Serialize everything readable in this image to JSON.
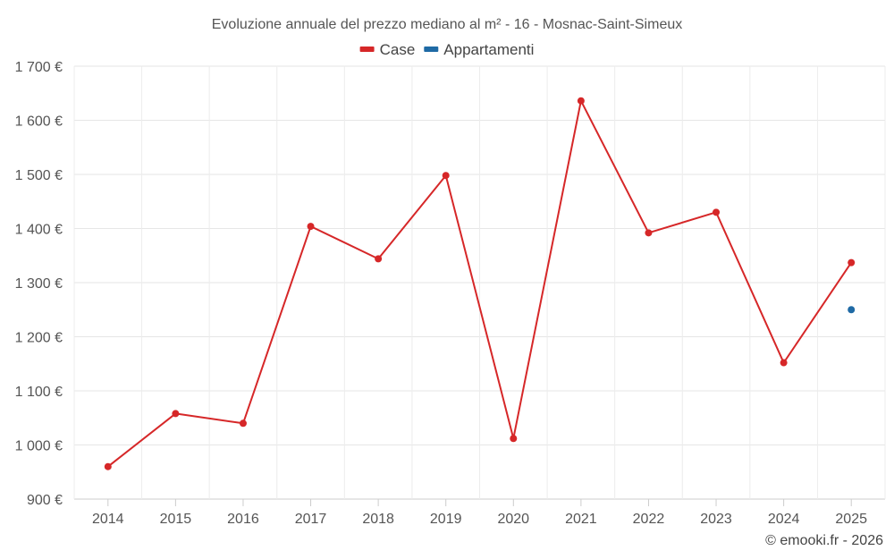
{
  "chart_data": {
    "type": "line",
    "title": "Evoluzione annuale del prezzo mediano al m² - 16 - Mosnac-Saint-Simeux",
    "categories": [
      "2014",
      "2015",
      "2016",
      "2017",
      "2018",
      "2019",
      "2020",
      "2021",
      "2022",
      "2023",
      "2024",
      "2025"
    ],
    "series": [
      {
        "name": "Case",
        "color": "#d62728",
        "values": [
          960,
          1058,
          1040,
          1404,
          1344,
          1498,
          1012,
          1636,
          1392,
          1430,
          1152,
          1337
        ]
      },
      {
        "name": "Appartamenti",
        "color": "#1f6aa5",
        "values": [
          null,
          null,
          null,
          null,
          null,
          null,
          null,
          null,
          null,
          null,
          null,
          1250
        ]
      }
    ],
    "ylim": [
      900,
      1700
    ],
    "yticks": [
      900,
      1000,
      1100,
      1200,
      1300,
      1400,
      1500,
      1600,
      1700
    ],
    "ytick_labels": [
      "900 €",
      "1 000 €",
      "1 100 €",
      "1 200 €",
      "1 300 €",
      "1 400 €",
      "1 500 €",
      "1 600 €",
      "1 700 €"
    ],
    "grid": true,
    "legend_position": "top-center",
    "xlabel": "",
    "ylabel": ""
  },
  "credit": "© emooki.fr - 2026"
}
